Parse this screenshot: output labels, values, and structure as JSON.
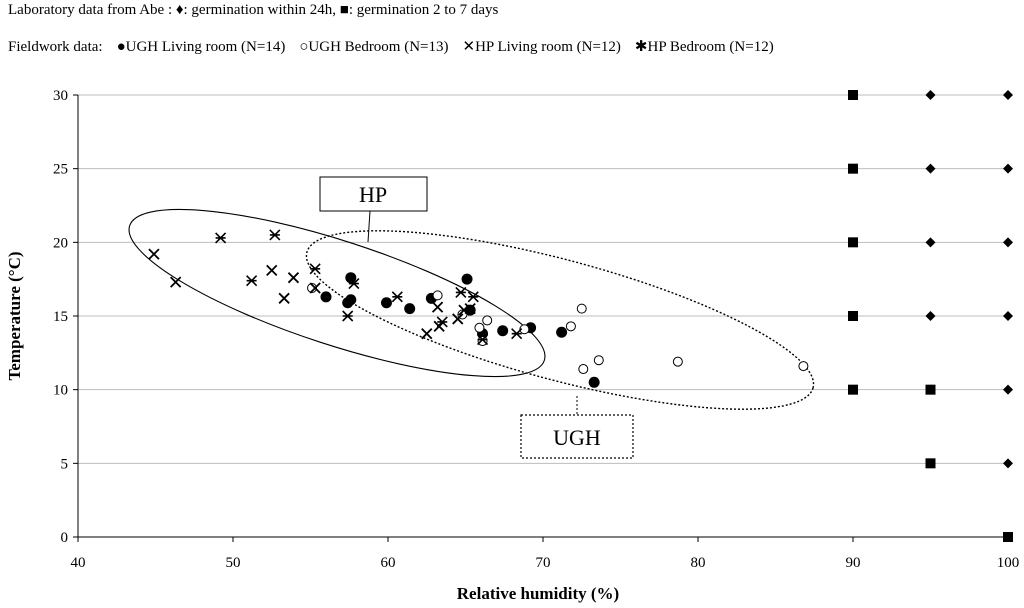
{
  "chart_data": {
    "type": "scatter",
    "xlabel": "Relative humidity (%)",
    "ylabel": "Temperature (°C)",
    "xlim": [
      40,
      100
    ],
    "ylim": [
      0,
      30
    ],
    "xticks": [
      "40",
      "50",
      "60",
      "70",
      "80",
      "90",
      "100"
    ],
    "yticks": [
      "0",
      "5",
      "10",
      "15",
      "20",
      "25",
      "30"
    ],
    "legend": {
      "lab_prefix": "Laboratory data from Abe :",
      "lab_diamond_label": ": germination within 24h,",
      "lab_square_label": ":  germination 2 to 7 days",
      "field_prefix": "Fieldwork data:",
      "series_labels": [
        "UGH Living room (N=14)",
        "UGH Bedroom (N=13)",
        "HP Living room (N=12)",
        "HP Bedroom (N=12)"
      ]
    },
    "annotations": {
      "hp": "HP",
      "ugh": "UGH"
    },
    "series": [
      {
        "name": "Laboratory: germination within 24h",
        "marker": "diamond",
        "points": [
          [
            95,
            30
          ],
          [
            100,
            30
          ],
          [
            95,
            25
          ],
          [
            100,
            25
          ],
          [
            95,
            20
          ],
          [
            100,
            20
          ],
          [
            95,
            15
          ],
          [
            100,
            15
          ],
          [
            95,
            10
          ],
          [
            100,
            10
          ],
          [
            95,
            5
          ],
          [
            100,
            5
          ]
        ]
      },
      {
        "name": "Laboratory: germination 2 to 7 days",
        "marker": "square",
        "points": [
          [
            90,
            30
          ],
          [
            90,
            25
          ],
          [
            90,
            20
          ],
          [
            90,
            15
          ],
          [
            90,
            10
          ],
          [
            95,
            10
          ],
          [
            95,
            5
          ],
          [
            100,
            0
          ]
        ]
      },
      {
        "name": "UGH Living room (N=14)",
        "marker": "filled-circle",
        "points": [
          [
            56,
            16.3
          ],
          [
            57.4,
            15.9
          ],
          [
            57.6,
            16.1
          ],
          [
            57.6,
            17.6
          ],
          [
            59.9,
            15.9
          ],
          [
            61.4,
            15.5
          ],
          [
            62.8,
            16.2
          ],
          [
            65.1,
            17.5
          ],
          [
            65.3,
            15.4
          ],
          [
            66.1,
            13.8
          ],
          [
            67.4,
            14
          ],
          [
            69.2,
            14.2
          ],
          [
            71.2,
            13.9
          ],
          [
            73.3,
            10.5
          ]
        ]
      },
      {
        "name": "UGH Bedroom (N=13)",
        "marker": "open-circle",
        "points": [
          [
            55.1,
            16.9
          ],
          [
            63.2,
            16.4
          ],
          [
            64.8,
            15.1
          ],
          [
            65.9,
            14.2
          ],
          [
            66.4,
            14.7
          ],
          [
            68.8,
            14.1
          ],
          [
            71.8,
            14.3
          ],
          [
            72.5,
            15.5
          ],
          [
            72.6,
            11.4
          ],
          [
            73.6,
            12
          ],
          [
            78.7,
            11.9
          ],
          [
            86.8,
            11.6
          ],
          [
            66.1,
            13.3
          ]
        ]
      },
      {
        "name": "HP Living room (N=12)",
        "marker": "x",
        "points": [
          [
            44.9,
            19.2
          ],
          [
            46.3,
            17.3
          ],
          [
            52.5,
            18.1
          ],
          [
            53.3,
            16.2
          ],
          [
            53.9,
            17.6
          ],
          [
            55.3,
            16.9
          ],
          [
            62.5,
            13.8
          ],
          [
            63.2,
            15.6
          ],
          [
            63.3,
            14.3
          ],
          [
            64.5,
            14.8
          ],
          [
            64.9,
            15.4
          ],
          [
            65.3,
            15.5
          ]
        ]
      },
      {
        "name": "HP Bedroom (N=12)",
        "marker": "asterisk",
        "points": [
          [
            49.2,
            20.3
          ],
          [
            51.2,
            17.4
          ],
          [
            52.7,
            20.5
          ],
          [
            55.3,
            18.2
          ],
          [
            57.4,
            15
          ],
          [
            57.8,
            17.2
          ],
          [
            60.6,
            16.3
          ],
          [
            63.5,
            14.6
          ],
          [
            64.7,
            16.6
          ],
          [
            65.5,
            16.3
          ],
          [
            66.1,
            13.4
          ],
          [
            68.3,
            13.8
          ]
        ]
      }
    ]
  }
}
